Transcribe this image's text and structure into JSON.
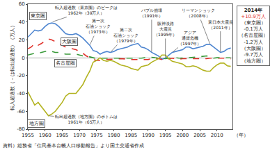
{
  "chart_data": {
    "type": "line",
    "y_label": "転入超過数（－は転出超過数）（万人）",
    "x_label": "（年）",
    "source": "資料）総務省「住民基本台帳人口移動報告」より国土交通省作成",
    "x": [
      1955,
      1956,
      1957,
      1958,
      1959,
      1960,
      1961,
      1962,
      1963,
      1964,
      1965,
      1966,
      1967,
      1968,
      1969,
      1970,
      1971,
      1972,
      1973,
      1974,
      1975,
      1976,
      1977,
      1978,
      1979,
      1980,
      1981,
      1982,
      1983,
      1984,
      1985,
      1986,
      1987,
      1988,
      1989,
      1990,
      1991,
      1992,
      1993,
      1994,
      1995,
      1996,
      1997,
      1998,
      1999,
      2000,
      2001,
      2002,
      2003,
      2004,
      2005,
      2006,
      2007,
      2008,
      2009,
      2010,
      2011,
      2012,
      2013,
      2014
    ],
    "xlim": [
      1955,
      2014.5
    ],
    "xticks": [
      1955,
      1960,
      1965,
      1970,
      1975,
      1980,
      1985,
      1990,
      1995,
      2000,
      2005,
      2010
    ],
    "ylim": [
      -80,
      60
    ],
    "yticks": [
      -80,
      -60,
      -40,
      -20,
      0,
      20,
      40,
      60
    ],
    "grid": false,
    "series": [
      {
        "name": "東京圏",
        "color": "#4f86d0",
        "line_style": "solid",
        "values": [
          23,
          27,
          31,
          30,
          31,
          35,
          38,
          39,
          38,
          35,
          31,
          27,
          26,
          26,
          27,
          25,
          22,
          18,
          14,
          8,
          7,
          4,
          6,
          7,
          6,
          7,
          9,
          10,
          11,
          12,
          14,
          15,
          16,
          12,
          11,
          9,
          6,
          4,
          2,
          -1.7,
          -0.5,
          3,
          6,
          7,
          8,
          9,
          12,
          12,
          10,
          11,
          12,
          13,
          15,
          15,
          12,
          9,
          6,
          7,
          9.7,
          10.9
        ]
      },
      {
        "name": "大阪圏",
        "color": "#e0312a",
        "line_style": "dash",
        "values": [
          10,
          12,
          16,
          14,
          16,
          19,
          21,
          20,
          18,
          16,
          14,
          12,
          11,
          10,
          9,
          7,
          5,
          2,
          0,
          -2,
          -3,
          -3,
          -2,
          -2,
          -2,
          -2,
          -1.5,
          -1,
          -1,
          -1.5,
          -2,
          -2,
          -2,
          -1.5,
          -2,
          -2,
          -1,
          -0.5,
          -1,
          -2,
          -3,
          -1,
          -0.5,
          -1,
          -1.5,
          -1,
          -1,
          -1.5,
          -1,
          -1,
          -1,
          -1,
          -1,
          -0.5,
          -0.3,
          -0.5,
          -0.5,
          -0.3,
          -0.5,
          -1.2
        ]
      },
      {
        "name": "名古屋圏",
        "color": "#3a9a3a",
        "line_style": "dash",
        "values": [
          3,
          4,
          5,
          5,
          6,
          7,
          8,
          7,
          6,
          6,
          5,
          4,
          4,
          4,
          4,
          3,
          2,
          2,
          1,
          0,
          -1,
          -0.5,
          -0.5,
          -0.5,
          -0.5,
          -0.5,
          -0.5,
          -0.5,
          -0.5,
          -1,
          -1,
          -1,
          -1,
          -0.5,
          0,
          0.5,
          0.5,
          0,
          -0.5,
          -1,
          -1,
          -0.5,
          0,
          0,
          -0.5,
          0,
          0,
          0,
          0.5,
          1,
          1,
          1.5,
          2,
          1.5,
          -0.5,
          0,
          0,
          0,
          0.3,
          -0.1
        ]
      },
      {
        "name": "地方圏",
        "color": "#b3b320",
        "line_style": "solid",
        "values": [
          -38,
          -45,
          -53,
          -50,
          -55,
          -60,
          -65,
          -63,
          -60,
          -55,
          -50,
          -43,
          -40,
          -40,
          -40,
          -35,
          -30,
          -22,
          -15,
          -5,
          -3,
          0,
          -3,
          -4,
          -3,
          -4,
          -6,
          -8,
          -9,
          -10,
          -12,
          -13,
          -14,
          -10,
          -9,
          -8,
          -5,
          -3,
          -1,
          3,
          3,
          -1,
          -4,
          -5,
          -6,
          -7,
          -10,
          -10,
          -9,
          -10,
          -12,
          -14,
          -15,
          -15,
          -11,
          -8,
          -6,
          -6,
          -9,
          -9.7
        ]
      }
    ],
    "annotations": [
      [
        "転入超過数（東京圏）のピークは",
        "1962年（39万人）"
      ],
      [
        "第一次",
        "石油ショック",
        "（1973年）"
      ],
      [
        "第二次",
        "石油ショック",
        "（1979年）"
      ],
      [
        "バブル崩壊",
        "（1991年）"
      ],
      [
        "阪神淡路",
        "大震災",
        "（1995年）"
      ],
      [
        "アジア",
        "通貨危機",
        "（1997年）"
      ],
      [
        "リーマンショック",
        "（2008年）"
      ],
      [
        "東日本大震災",
        "（2011年）"
      ],
      [
        "転出超過数（地方圏）のボトムは",
        "1961年（65万人）"
      ]
    ],
    "summary": {
      "title": "2014年",
      "lines": [
        "+10.9万人",
        "（東京圏）",
        "-0.1万人",
        "（名古屋圏）",
        "-1.2万人",
        "（大阪圏）",
        "-9.7万人",
        "（地方圏）"
      ]
    }
  }
}
